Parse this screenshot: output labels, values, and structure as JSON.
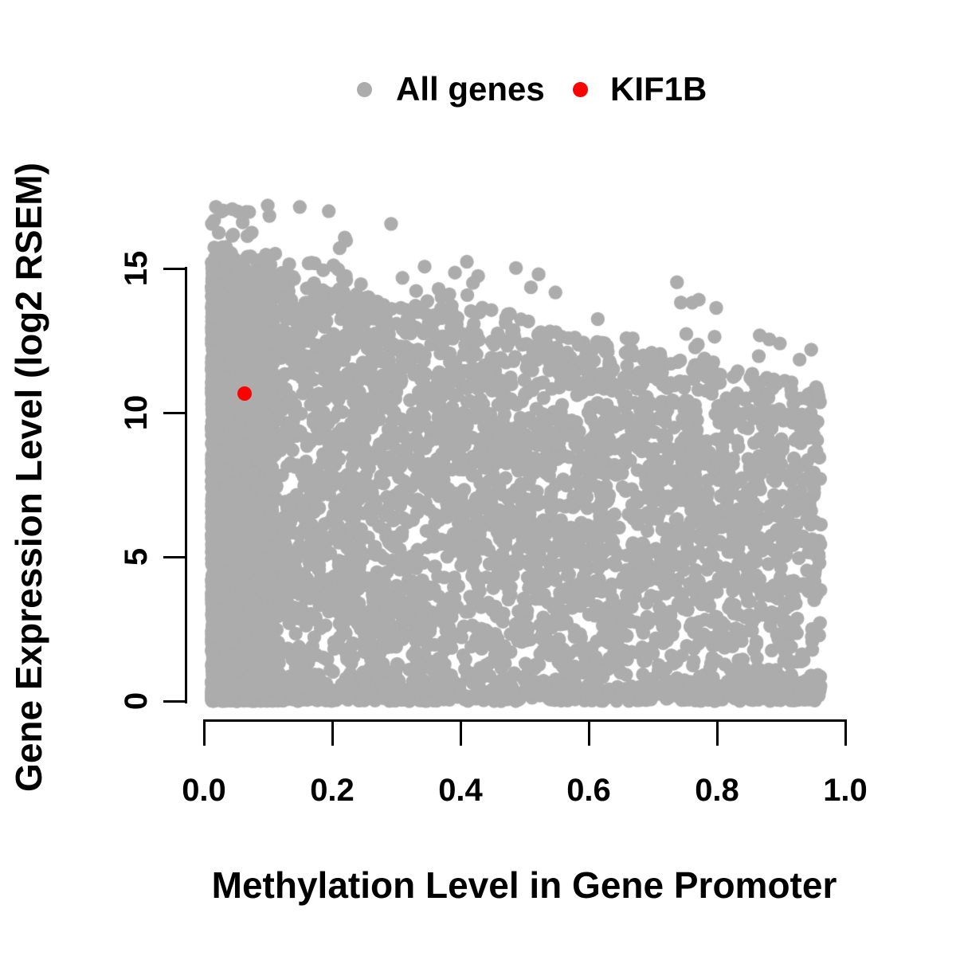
{
  "figure": {
    "background_color": "#FFFFFF",
    "text_color": "#000000"
  },
  "chart_data": {
    "type": "scatter",
    "title": "",
    "xlabel": "Methylation Level in Gene Promoter",
    "ylabel": "Gene Expression Level (log2 RSEM)",
    "xlim": [
      0,
      1.0
    ],
    "ylim": [
      0,
      17.3
    ],
    "x_ticks": [
      0,
      0.2,
      0.4,
      0.6,
      0.8,
      1.0
    ],
    "x_tick_labels": [
      "0.0",
      "0.2",
      "0.4",
      "0.6",
      "0.8",
      "1.0"
    ],
    "y_ticks": [
      0,
      5,
      10,
      15
    ],
    "y_tick_labels": [
      "0",
      "5",
      "10",
      "15"
    ],
    "grid": false,
    "legend_position": "top-center",
    "series": [
      {
        "name": "All genes",
        "color": "#ACACAC",
        "marker": "filled-circle",
        "n_points": 7500,
        "summary": "Dense cloud of genes: promoter methylation spans 0.01-0.96, expression 0-17.2 log2 RSEM. Upper envelope of expression declines from ~15.3 at methylation 0 to ~11 at methylation 0.95 (negative trend). Density is highest at methylation < 0.1 (solid vertical band over full expression range) and along the expression=0 baseline across all methylation levels; cloud thins toward high methylation.",
        "generator": {
          "seed": 42,
          "n": 7500,
          "left_band_frac": 0.38,
          "left_band_min": 0.012,
          "left_band_span": 0.095,
          "left_band_pow": 1.4,
          "broad_min": 0.012,
          "broad_span": 0.95,
          "broad_pow": 1.3,
          "ymax_intercept": 15.3,
          "ymax_slope": -4.6,
          "bottom_frac": 0.14,
          "bottom_scale": 0.35,
          "tail_frac": 0.015,
          "tail_scale": 0.8,
          "y_pow": 0.9,
          "x_max": 0.965,
          "y_clip": 17.25
        }
      },
      {
        "name": "KIF1B",
        "color": "#FF0000",
        "marker": "filled-circle",
        "points": [
          {
            "x": 0.063,
            "y": 10.66
          }
        ]
      }
    ]
  }
}
